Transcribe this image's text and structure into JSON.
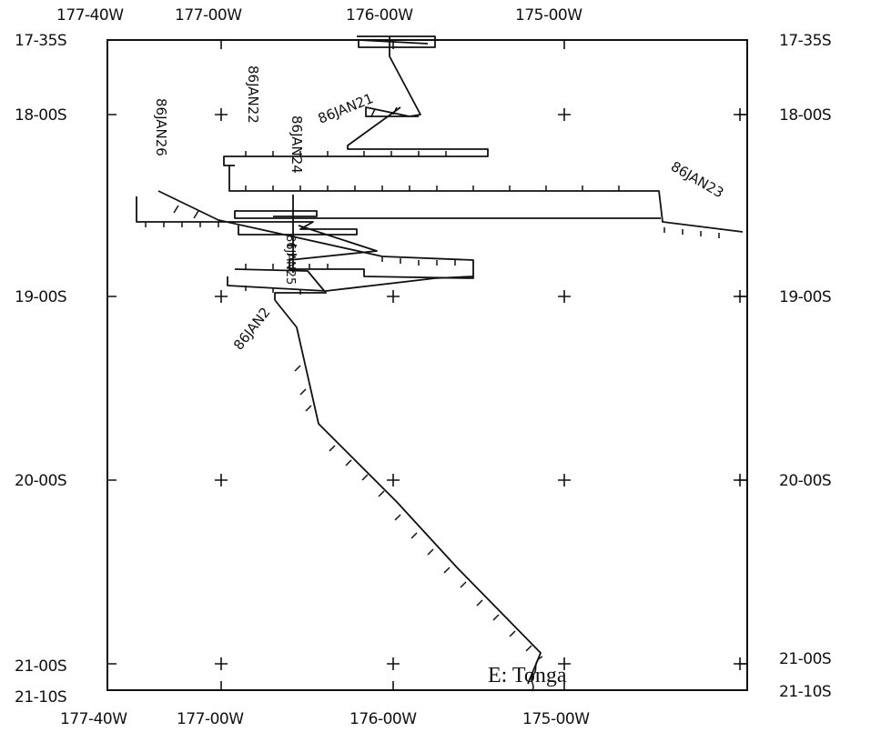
{
  "map": {
    "x_labels_top": [
      "177-40W",
      "177-00W",
      "176-00W",
      "175-00W"
    ],
    "x_labels_bottom": [
      "177-40W",
      "177-00W",
      "176-00W",
      "175-00W"
    ],
    "y_labels_left": [
      "17-35S",
      "18-00S",
      "19-00S",
      "20-00S",
      "21-00S",
      "21-10S"
    ],
    "y_labels_right": [
      "17-35S",
      "18-00S",
      "19-00S",
      "20-00S",
      "21-00S",
      "21-10S"
    ],
    "region_label": "E: Tonga",
    "date_labels": [
      "86JAN26",
      "86JAN22",
      "86JAN24",
      "86JAN21",
      "86JAN23",
      "86JAN2",
      "86JAN25"
    ],
    "extent": {
      "lon_west": -177.6667,
      "lon_east": -174.0,
      "lat_north": -17.5833,
      "lat_south": -21.1667
    }
  }
}
